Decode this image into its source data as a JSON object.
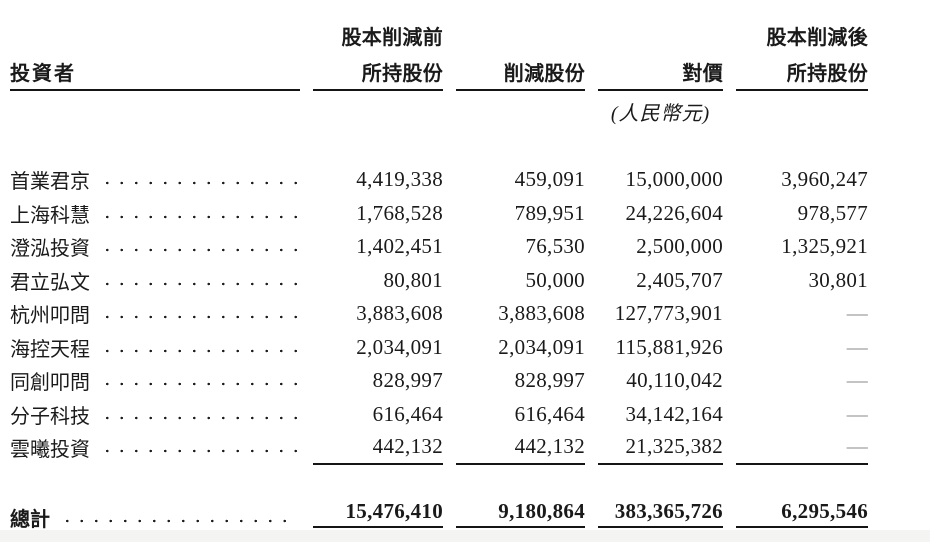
{
  "table": {
    "columns": {
      "investor": "投資者",
      "before_line1": "股本削減前",
      "before_line2": "所持股份",
      "reduced": "削減股份",
      "consideration": "對價",
      "after_line1": "股本削減後",
      "after_line2": "所持股份",
      "currency_note": "(人民幣元)"
    },
    "rows": [
      {
        "investor": "首業君京",
        "before": "4,419,338",
        "reduced": "459,091",
        "consideration": "15,000,000",
        "after": "3,960,247"
      },
      {
        "investor": "上海科慧",
        "before": "1,768,528",
        "reduced": "789,951",
        "consideration": "24,226,604",
        "after": "978,577"
      },
      {
        "investor": "澄泓投資",
        "before": "1,402,451",
        "reduced": "76,530",
        "consideration": "2,500,000",
        "after": "1,325,921"
      },
      {
        "investor": "君立弘文",
        "before": "80,801",
        "reduced": "50,000",
        "consideration": "2,405,707",
        "after": "30,801"
      },
      {
        "investor": "杭州叩問",
        "before": "3,883,608",
        "reduced": "3,883,608",
        "consideration": "127,773,901",
        "after": "—"
      },
      {
        "investor": "海控天程",
        "before": "2,034,091",
        "reduced": "2,034,091",
        "consideration": "115,881,926",
        "after": "—"
      },
      {
        "investor": "同創叩問",
        "before": "828,997",
        "reduced": "828,997",
        "consideration": "40,110,042",
        "after": "—"
      },
      {
        "investor": "分子科技",
        "before": "616,464",
        "reduced": "616,464",
        "consideration": "34,142,164",
        "after": "—"
      },
      {
        "investor": "雲曦投資",
        "before": "442,132",
        "reduced": "442,132",
        "consideration": "21,325,382",
        "after": "—"
      }
    ],
    "total": {
      "label": "總計",
      "before": "15,476,410",
      "reduced": "9,180,864",
      "consideration": "383,365,726",
      "after": "6,295,546"
    }
  },
  "colors": {
    "text": "#1a1a1a",
    "rule": "#151515",
    "em_dash": "#8a8a8a",
    "footer_strip": "#f4f4f3"
  }
}
